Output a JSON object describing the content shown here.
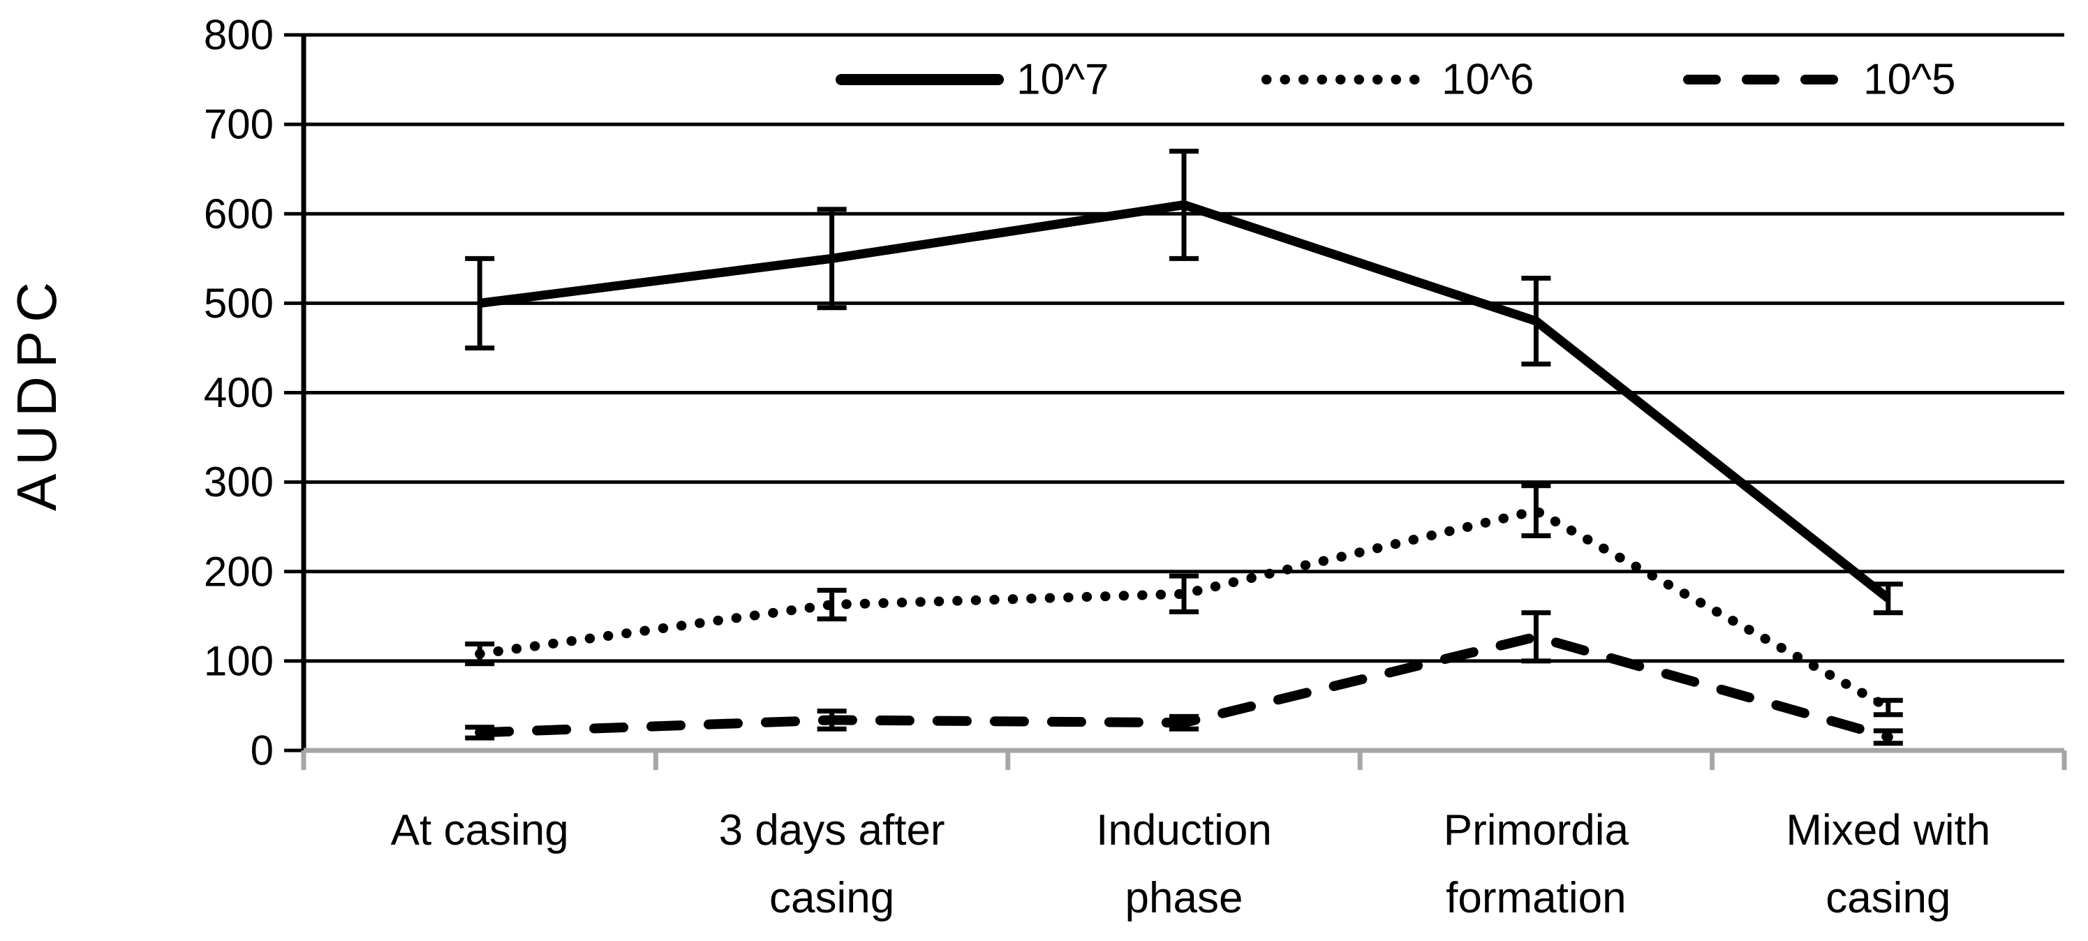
{
  "figure": {
    "kind": "scientific-line-chart",
    "title": ""
  },
  "chart_data": {
    "type": "line",
    "title": "",
    "xlabel": "",
    "ylabel": "AUDPC",
    "ylim": [
      0,
      800
    ],
    "ytick_step": 100,
    "yticks": [
      0,
      100,
      200,
      300,
      400,
      500,
      600,
      700,
      800
    ],
    "grid": "horizontal-gridlines-on",
    "legend_position": "top-center-inside",
    "legend_entries": [
      "10^7",
      "10^6",
      "10^5"
    ],
    "categories": [
      "At casing",
      "3 days after casing",
      "Induction phase",
      "Primordia formation",
      "Mixed with casing"
    ],
    "category_label_lines": [
      [
        "At casing"
      ],
      [
        "3 days after",
        "casing"
      ],
      [
        "Induction",
        "phase"
      ],
      [
        "Primordia",
        "formation"
      ],
      [
        "Mixed with",
        "casing"
      ]
    ],
    "series": [
      {
        "name": "10^7",
        "line_style": "solid",
        "values": [
          500,
          550,
          610,
          480,
          170
        ],
        "errors": [
          50,
          55,
          60,
          48,
          16
        ]
      },
      {
        "name": "10^6",
        "line_style": "dotted",
        "values": [
          108,
          163,
          175,
          268,
          48
        ],
        "errors": [
          11,
          16,
          20,
          28,
          8
        ]
      },
      {
        "name": "10^5",
        "line_style": "dashed",
        "values": [
          20,
          34,
          31,
          127,
          15
        ],
        "errors": [
          6,
          10,
          7,
          27,
          7
        ]
      }
    ],
    "colors": {
      "series": "#000000",
      "grid": "#000000",
      "y_axis": "#000000",
      "x_axis": "#a6a6a6",
      "text": "#000000",
      "background": "#ffffff"
    }
  }
}
